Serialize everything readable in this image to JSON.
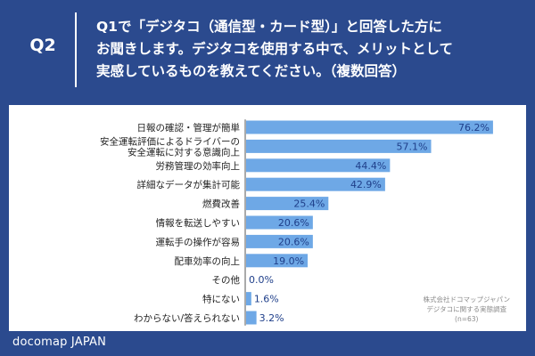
{
  "header": {
    "q_label": "Q2",
    "question_lines": [
      "Q1で「デジタコ（通信型・カード型）」と回答した方に",
      "お聞きします。デジタコを使用する中で、メリットとして",
      "実感しているものを教えてください。（複数回答）"
    ]
  },
  "chart_data": {
    "type": "bar",
    "orientation": "horizontal",
    "categories": [
      [
        "日報の確認・管理が簡単"
      ],
      [
        "安全運転評価によるドライバーの",
        "安全運転に対する意識向上"
      ],
      [
        "労務管理の効率向上"
      ],
      [
        "詳細なデータが集計可能"
      ],
      [
        "燃費改善"
      ],
      [
        "情報を転送しやすい"
      ],
      [
        "運転手の操作が容易"
      ],
      [
        "配車効率の向上"
      ],
      [
        "その他"
      ],
      [
        "特にない"
      ],
      [
        "わからない/答えられない"
      ]
    ],
    "values": [
      76.2,
      57.1,
      44.4,
      42.9,
      25.4,
      20.6,
      20.6,
      19.0,
      0.0,
      1.6,
      3.2
    ],
    "value_labels": [
      "76.2%",
      "57.1%",
      "44.4%",
      "42.9%",
      "25.4%",
      "20.6%",
      "20.6%",
      "19.0%",
      "0.0%",
      "1.6%",
      "3.2%"
    ],
    "xlim": [
      0,
      82
    ],
    "grid": false,
    "bar_color": "#6ea8e6"
  },
  "source": {
    "line1": "株式会社ドコマップジャパン",
    "line2": "デジタコに関する実態調査",
    "line3": "(n=63)"
  },
  "footer": {
    "brand": "docomap JAPAN"
  }
}
